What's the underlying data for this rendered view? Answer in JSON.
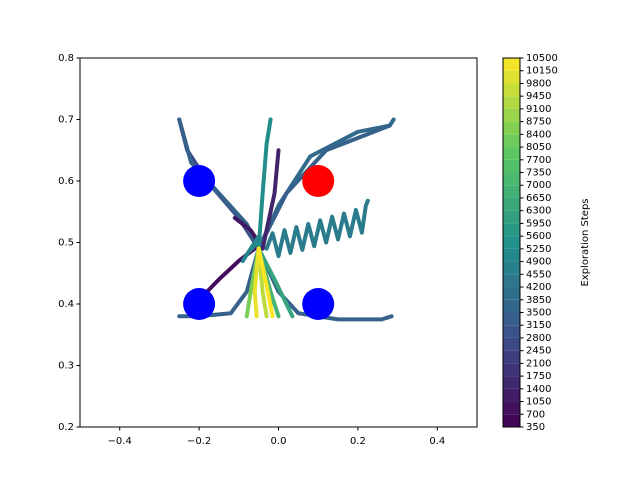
{
  "chart_data": {
    "type": "line",
    "xlim": [
      -0.5,
      0.5
    ],
    "ylim": [
      0.2,
      0.8
    ],
    "xticks": [
      {
        "value": -0.4,
        "label": "−0.4"
      },
      {
        "value": -0.2,
        "label": "−0.2"
      },
      {
        "value": 0,
        "label": "0.0"
      },
      0.2,
      0.4
    ],
    "yticks": [
      0.2,
      0.3,
      0.4,
      0.5,
      0.6,
      0.7,
      0.8
    ],
    "colorbar": {
      "label": "Exploration Steps",
      "lim": [
        350,
        10500
      ],
      "ticks": [
        350,
        700,
        1050,
        1400,
        1750,
        2100,
        2450,
        2800,
        3150,
        3500,
        3850,
        4200,
        4550,
        4900,
        5250,
        5600,
        5950,
        6300,
        6650,
        7000,
        7350,
        7700,
        8050,
        8400,
        8750,
        9100,
        9450,
        9800,
        10150,
        10500
      ]
    },
    "markers": [
      {
        "x": -0.2,
        "y": 0.6,
        "color": "#0000ff"
      },
      {
        "x": -0.2,
        "y": 0.4,
        "color": "#0000ff"
      },
      {
        "x": 0.1,
        "y": 0.4,
        "color": "#0000ff"
      },
      {
        "x": 0.1,
        "y": 0.6,
        "color": "#ff0000"
      }
    ],
    "series": [
      {
        "steps": 2800,
        "x": [
          -0.25,
          -0.23,
          -0.18,
          -0.1,
          -0.05
        ],
        "y": [
          0.7,
          0.65,
          0.6,
          0.54,
          0.49
        ]
      },
      {
        "steps": 3500,
        "x": [
          -0.25,
          -0.22,
          -0.15,
          -0.08,
          -0.05
        ],
        "y": [
          0.7,
          0.63,
          0.58,
          0.53,
          0.49
        ]
      },
      {
        "steps": 3850,
        "x": [
          -0.05,
          0.0,
          0.08,
          0.2,
          0.28,
          0.29
        ],
        "y": [
          0.49,
          0.56,
          0.64,
          0.68,
          0.69,
          0.7
        ]
      },
      {
        "steps": 3500,
        "x": [
          -0.05,
          0.02,
          0.12,
          0.22,
          0.28
        ],
        "y": [
          0.49,
          0.58,
          0.65,
          0.675,
          0.69
        ]
      },
      {
        "steps": 3500,
        "x": [
          -0.05,
          -0.08,
          -0.12,
          -0.2,
          -0.25
        ],
        "y": [
          0.49,
          0.42,
          0.385,
          0.38,
          0.38
        ]
      },
      {
        "steps": 3500,
        "x": [
          -0.05,
          0.0,
          0.05,
          0.15,
          0.26,
          0.285
        ],
        "y": [
          0.49,
          0.42,
          0.385,
          0.375,
          0.375,
          0.38
        ]
      },
      {
        "steps": 700,
        "x": [
          -0.195,
          -0.15,
          -0.1,
          -0.06
        ],
        "y": [
          0.41,
          0.44,
          0.47,
          0.49
        ]
      },
      {
        "steps": 1050,
        "x": [
          -0.11,
          -0.07,
          -0.05
        ],
        "y": [
          0.54,
          0.52,
          0.5
        ]
      },
      {
        "steps": 1400,
        "x": [
          0.0,
          -0.01,
          -0.03,
          -0.04
        ],
        "y": [
          0.65,
          0.58,
          0.52,
          0.49
        ]
      },
      {
        "steps": 5250,
        "x": [
          -0.05,
          -0.04,
          -0.03,
          -0.02
        ],
        "y": [
          0.49,
          0.58,
          0.66,
          0.7
        ]
      },
      {
        "steps": 4550,
        "x": [
          -0.03,
          -0.015,
          0.0,
          0.015,
          0.03,
          0.045,
          0.06,
          0.075,
          0.09,
          0.105,
          0.12,
          0.135,
          0.15,
          0.165,
          0.18,
          0.195,
          0.21,
          0.22,
          0.225
        ],
        "y": [
          0.49,
          0.515,
          0.478,
          0.52,
          0.483,
          0.525,
          0.488,
          0.53,
          0.494,
          0.536,
          0.5,
          0.542,
          0.505,
          0.547,
          0.51,
          0.553,
          0.516,
          0.56,
          0.568
        ]
      },
      {
        "steps": 4900,
        "x": [
          -0.09,
          -0.06,
          -0.085,
          -0.055,
          -0.08,
          -0.05,
          -0.075,
          -0.045
        ],
        "y": [
          0.47,
          0.5,
          0.475,
          0.505,
          0.48,
          0.51,
          0.485,
          0.505
        ]
      },
      {
        "steps": 6300,
        "x": [
          -0.05,
          -0.01,
          0.02,
          0.035
        ],
        "y": [
          0.49,
          0.44,
          0.4,
          0.38
        ]
      },
      {
        "steps": 7000,
        "x": [
          -0.05,
          -0.02,
          0.0
        ],
        "y": [
          0.49,
          0.42,
          0.38
        ]
      },
      {
        "steps": 8400,
        "x": [
          -0.05,
          -0.07,
          -0.08
        ],
        "y": [
          0.49,
          0.42,
          0.38
        ]
      },
      {
        "steps": 9450,
        "x": [
          -0.05,
          -0.04,
          -0.03
        ],
        "y": [
          0.49,
          0.42,
          0.38
        ]
      },
      {
        "steps": 10150,
        "x": [
          -0.05,
          -0.06,
          -0.055
        ],
        "y": [
          0.49,
          0.42,
          0.38
        ]
      },
      {
        "steps": 10500,
        "x": [
          -0.05,
          -0.03,
          -0.015
        ],
        "y": [
          0.49,
          0.43,
          0.38
        ]
      }
    ]
  }
}
